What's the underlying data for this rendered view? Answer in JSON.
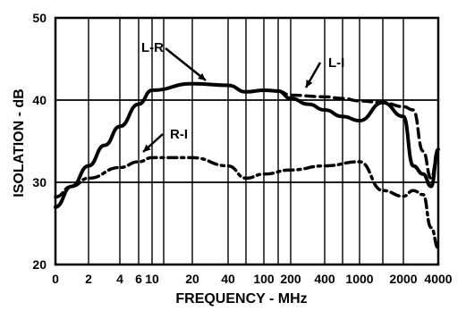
{
  "chart_data": {
    "type": "line",
    "xlabel": "FREQUENCY - MHz",
    "ylabel": "ISOLATION - dB",
    "ylim": [
      20,
      50
    ],
    "yticks": [
      "20",
      "30",
      "40",
      "50"
    ],
    "xticks": [
      "0",
      "2",
      "4",
      "6",
      "10",
      "20",
      "40",
      "100",
      "200",
      "400",
      "1000",
      "2000",
      "4000"
    ],
    "grid": true,
    "series": [
      {
        "name": "L-R",
        "style": "solid",
        "x": [
          "0",
          "1",
          "2",
          "3",
          "4",
          "6",
          "10",
          "20",
          "40",
          "60",
          "100",
          "150",
          "200",
          "300",
          "400",
          "600",
          "1000",
          "1500",
          "2000",
          "2500",
          "3000",
          "3500",
          "4000"
        ],
        "y": [
          27,
          29.5,
          32,
          34.5,
          36.8,
          39.5,
          41.2,
          42,
          41.8,
          41,
          41.2,
          41.1,
          40.2,
          39.5,
          38.8,
          38,
          37.5,
          39.7,
          38,
          32,
          31,
          29.5,
          34
        ]
      },
      {
        "name": "L-I",
        "style": "dashed",
        "x": [
          "100",
          "150",
          "200",
          "400",
          "600",
          "1000",
          "1500",
          "2000",
          "2500",
          "3000",
          "3500",
          "4000"
        ],
        "y": [
          41.2,
          41.1,
          40.6,
          40.4,
          40.2,
          39.9,
          39.7,
          39.2,
          38.8,
          33.8,
          30.5,
          34
        ]
      },
      {
        "name": "R-I",
        "style": "dashdot",
        "x": [
          "0",
          "1",
          "2",
          "4",
          "6",
          "10",
          "20",
          "40",
          "60",
          "100",
          "200",
          "400",
          "1000",
          "1500",
          "2000",
          "2500",
          "3000",
          "3500",
          "4000"
        ],
        "y": [
          28.2,
          29.5,
          30.5,
          31.8,
          32.5,
          33,
          33,
          32,
          30.5,
          31,
          31.5,
          32,
          32.5,
          29,
          28.3,
          29,
          28.5,
          24.5,
          22
        ]
      }
    ],
    "annotations": [
      "L-R",
      "L-I",
      "R-I"
    ]
  }
}
